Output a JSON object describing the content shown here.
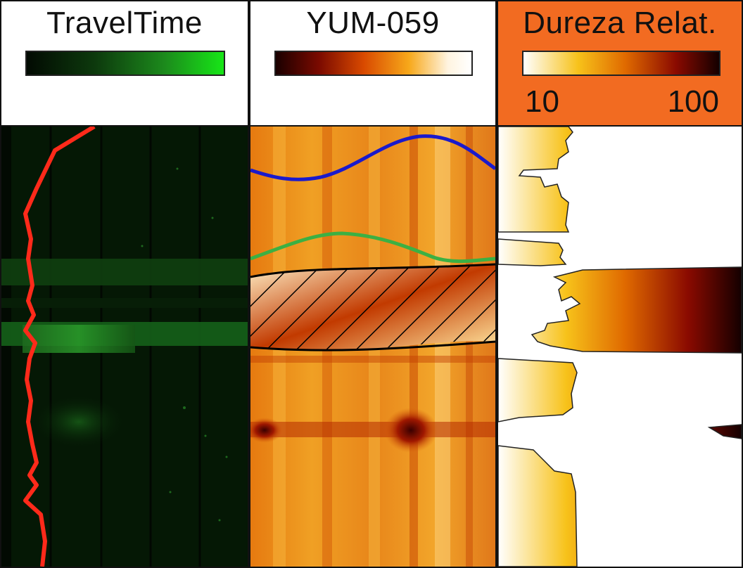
{
  "tracks": [
    {
      "id": "traveltime",
      "title": "TravelTime",
      "colormap": [
        "#020a02",
        "#0d3a0d",
        "#1c8a1c",
        "#17e617"
      ],
      "header_bg": "#ffffff",
      "curve_color": "#ff2a1a"
    },
    {
      "id": "yum",
      "title": "YUM-059",
      "colormap": [
        "#1a0000",
        "#7a0a00",
        "#d94a00",
        "#f7a81a",
        "#fff4e0",
        "#ffffff"
      ],
      "header_bg": "#ffffff",
      "surface_colors": [
        "#1a1acc",
        "#3cb043",
        "#000000"
      ]
    },
    {
      "id": "dureza",
      "title": "Dureza Relat.",
      "colormap": [
        "#ffffff",
        "#f7c21a",
        "#e06a00",
        "#8a0a00",
        "#140000"
      ],
      "scale_min": "10",
      "scale_max": "100",
      "header_bg": "#f26b21"
    }
  ]
}
